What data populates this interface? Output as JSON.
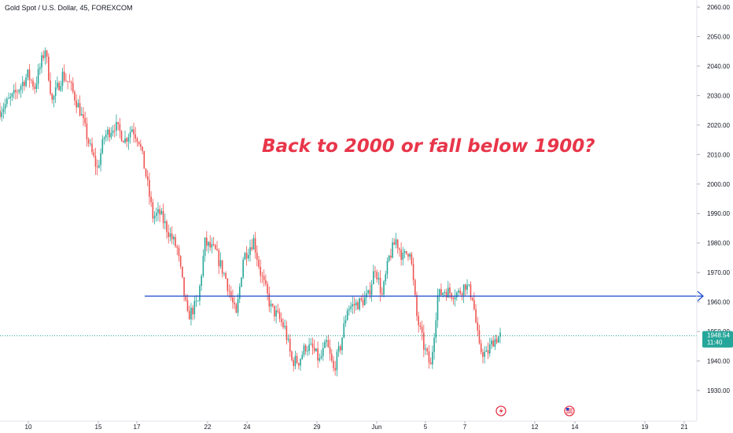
{
  "chart_data": {
    "type": "candlestick",
    "title": "Gold Spot / U.S. Dollar, 45, FOREXCOM",
    "annotation": "Back to 2000 or fall below 1900?",
    "y_axis": {
      "position": "right",
      "ticks": [
        "2060.00",
        "2050.00",
        "2040.00",
        "2030.00",
        "2020.00",
        "2010.00",
        "2000.00",
        "1990.00",
        "1980.00",
        "1970.00",
        "1960.00",
        "1950.00",
        "1940.00",
        "1930.00"
      ],
      "ylim": [
        1925,
        2062
      ]
    },
    "x_axis": {
      "ticks": [
        "10",
        "15",
        "17",
        "22",
        "24",
        "29",
        "Jun",
        "5",
        "7",
        "12",
        "14",
        "19",
        "21"
      ]
    },
    "horizontal_line": {
      "value": 1962,
      "color": "#1848cc"
    },
    "current_price": {
      "value": "1948.54",
      "countdown": "11:40",
      "color": "#26a69a"
    },
    "colors": {
      "up": "#26a69a",
      "down": "#ef5350"
    },
    "price_path": [
      [
        0,
        2025
      ],
      [
        4,
        2030
      ],
      [
        8,
        2037
      ],
      [
        10,
        2033
      ],
      [
        13,
        2046
      ],
      [
        15,
        2028
      ],
      [
        18,
        2037
      ],
      [
        20,
        2034
      ],
      [
        23,
        2025
      ],
      [
        26,
        2012
      ],
      [
        28,
        2005
      ],
      [
        30,
        2016
      ],
      [
        33,
        2020
      ],
      [
        36,
        2015
      ],
      [
        38,
        2019
      ],
      [
        40,
        2015
      ],
      [
        42,
        2003
      ],
      [
        44,
        1989
      ],
      [
        46,
        1990
      ],
      [
        48,
        1985
      ],
      [
        51,
        1978
      ],
      [
        54,
        1955
      ],
      [
        57,
        1960
      ],
      [
        59,
        1980
      ],
      [
        62,
        1977
      ],
      [
        65,
        1968
      ],
      [
        68,
        1955
      ],
      [
        70,
        1975
      ],
      [
        73,
        1981
      ],
      [
        75,
        1970
      ],
      [
        78,
        1958
      ],
      [
        80,
        1955
      ],
      [
        82,
        1951
      ],
      [
        84,
        1940
      ],
      [
        86,
        1940
      ],
      [
        88,
        1945
      ],
      [
        90,
        1944
      ],
      [
        92,
        1940
      ],
      [
        94,
        1946
      ],
      [
        96,
        1937
      ],
      [
        98,
        1945
      ],
      [
        100,
        1958
      ],
      [
        104,
        1960
      ],
      [
        106,
        1962
      ],
      [
        108,
        1972
      ],
      [
        110,
        1962
      ],
      [
        112,
        1975
      ],
      [
        114,
        1981
      ],
      [
        116,
        1975
      ],
      [
        118,
        1978
      ],
      [
        120,
        1955
      ],
      [
        122,
        1945
      ],
      [
        124,
        1938
      ],
      [
        126,
        1962
      ],
      [
        128,
        1964
      ],
      [
        130,
        1963
      ],
      [
        132,
        1963
      ],
      [
        134,
        1966
      ],
      [
        136,
        1962
      ],
      [
        138,
        1944
      ],
      [
        140,
        1942
      ],
      [
        142,
        1947
      ],
      [
        144,
        1948.5
      ]
    ],
    "events": [
      "lightning-icon",
      "us-flag-icon"
    ]
  }
}
